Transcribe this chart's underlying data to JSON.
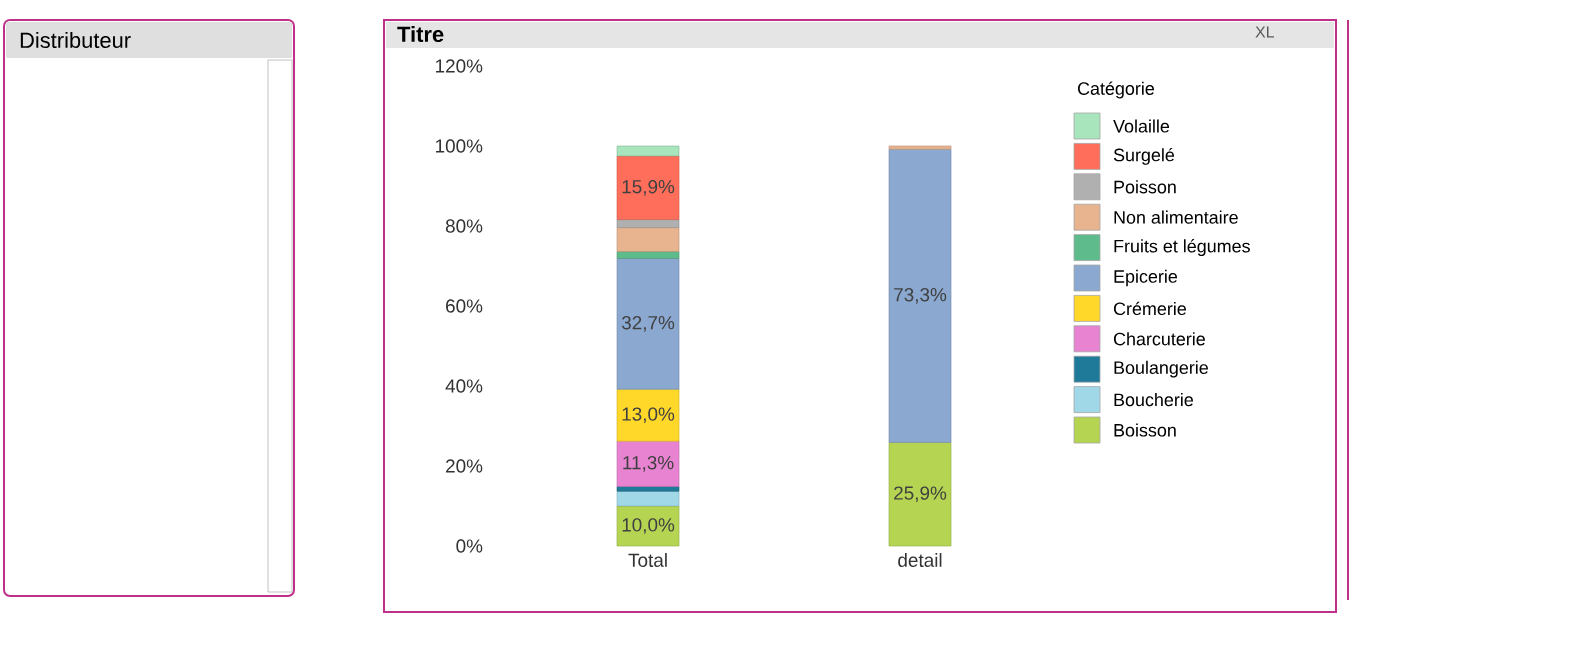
{
  "chart_data": [
    {
      "type": "other",
      "title": "Distributeur"
    },
    {
      "type": "bar",
      "title": "Titre",
      "stacked": true,
      "legend": "right",
      "legend_title": "Catégorie",
      "annotations": [
        "XL"
      ],
      "categories": [
        "Total",
        "detail"
      ],
      "ylim": [
        0,
        120
      ],
      "yticks": [
        {
          "value": 0,
          "label": "0%"
        },
        {
          "value": 20,
          "label": "20%"
        },
        {
          "value": 40,
          "label": "40%"
        },
        {
          "value": 60,
          "label": "60%"
        },
        {
          "value": 80,
          "label": "80%"
        },
        {
          "value": 100,
          "label": "100%"
        },
        {
          "value": 120,
          "label": "120%"
        }
      ],
      "series": [
        {
          "name": "Boisson",
          "color": "#b5d552",
          "values": [
            10.0,
            25.9
          ],
          "value_labels": [
            "10,0%",
            "25,9%"
          ]
        },
        {
          "name": "Boucherie",
          "color": "#a0d8e8",
          "values": [
            3.7,
            null
          ]
        },
        {
          "name": "Boulangerie",
          "color": "#1f7a99",
          "values": [
            1.2,
            null
          ]
        },
        {
          "name": "Charcuterie",
          "color": "#e883d2",
          "values": [
            11.3,
            null
          ],
          "value_labels": [
            "11,3%",
            null
          ]
        },
        {
          "name": "Crémerie",
          "color": "#ffd829",
          "values": [
            13.0,
            null
          ],
          "value_labels": [
            "13,0%",
            null
          ]
        },
        {
          "name": "Epicerie",
          "color": "#8aa8d0",
          "values": [
            32.7,
            73.3
          ],
          "value_labels": [
            "32,7%",
            "73,3%"
          ]
        },
        {
          "name": "Fruits et légumes",
          "color": "#5dbb8c",
          "values": [
            1.7,
            null
          ]
        },
        {
          "name": "Non alimentaire",
          "color": "#e8b490",
          "values": [
            6.0,
            0.8
          ]
        },
        {
          "name": "Poisson",
          "color": "#b0b0b0",
          "values": [
            2.0,
            null
          ]
        },
        {
          "name": "Surgelé",
          "color": "#ff6e5a",
          "values": [
            15.9,
            null
          ],
          "value_labels": [
            "15,9%",
            null
          ]
        },
        {
          "name": "Volaille",
          "color": "#a8e4bc",
          "values": [
            2.5,
            null
          ]
        }
      ]
    }
  ]
}
